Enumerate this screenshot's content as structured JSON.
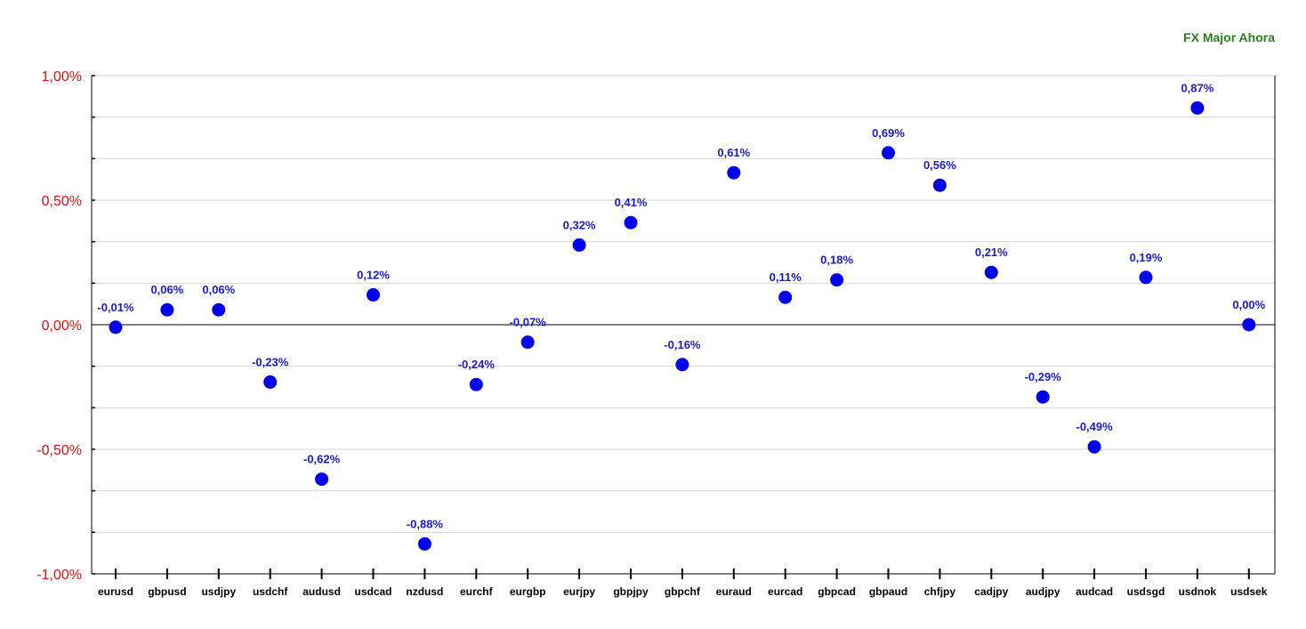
{
  "chart_data": {
    "type": "scatter",
    "title": "FX Major Ahora",
    "xlabel": "",
    "ylabel": "",
    "ylim": [
      -1.0,
      1.0
    ],
    "yticks": [
      1.0,
      0.5,
      0.0,
      -0.5,
      -1.0
    ],
    "ytick_labels": [
      "1,00%",
      "0,50%",
      "0,00%",
      "-0,50%",
      "-1,00%"
    ],
    "grid": true,
    "categories": [
      "eurusd",
      "gbpusd",
      "usdjpy",
      "usdchf",
      "audusd",
      "usdcad",
      "nzdusd",
      "eurchf",
      "eurgbp",
      "eurjpy",
      "gbpjpy",
      "gbpchf",
      "euraud",
      "eurcad",
      "gbpcad",
      "gbpaud",
      "chfjpy",
      "cadjpy",
      "audjpy",
      "audcad",
      "usdsgd",
      "usdnok",
      "usdsek"
    ],
    "values": [
      -0.01,
      0.06,
      0.06,
      -0.23,
      -0.62,
      0.12,
      -0.88,
      -0.24,
      -0.07,
      0.32,
      0.41,
      -0.16,
      0.61,
      0.11,
      0.18,
      0.69,
      0.56,
      0.21,
      -0.29,
      -0.49,
      0.19,
      0.87,
      0.0
    ],
    "value_labels": [
      "-0,01%",
      "0,06%",
      "0,06%",
      "-0,23%",
      "-0,62%",
      "0,12%",
      "-0,88%",
      "-0,24%",
      "-0,07%",
      "0,32%",
      "0,41%",
      "-0,16%",
      "0,61%",
      "0,11%",
      "0,18%",
      "0,69%",
      "0,56%",
      "0,21%",
      "-0,29%",
      "-0,49%",
      "0,19%",
      "0,87%",
      "0,00%"
    ],
    "colors": {
      "point": "#0000ee",
      "value_label": "#1a1ad4",
      "ytick_label": "#dd1111",
      "title": "#2e7d1e",
      "grid": "#d6d6d6",
      "axis": "#000000"
    }
  }
}
